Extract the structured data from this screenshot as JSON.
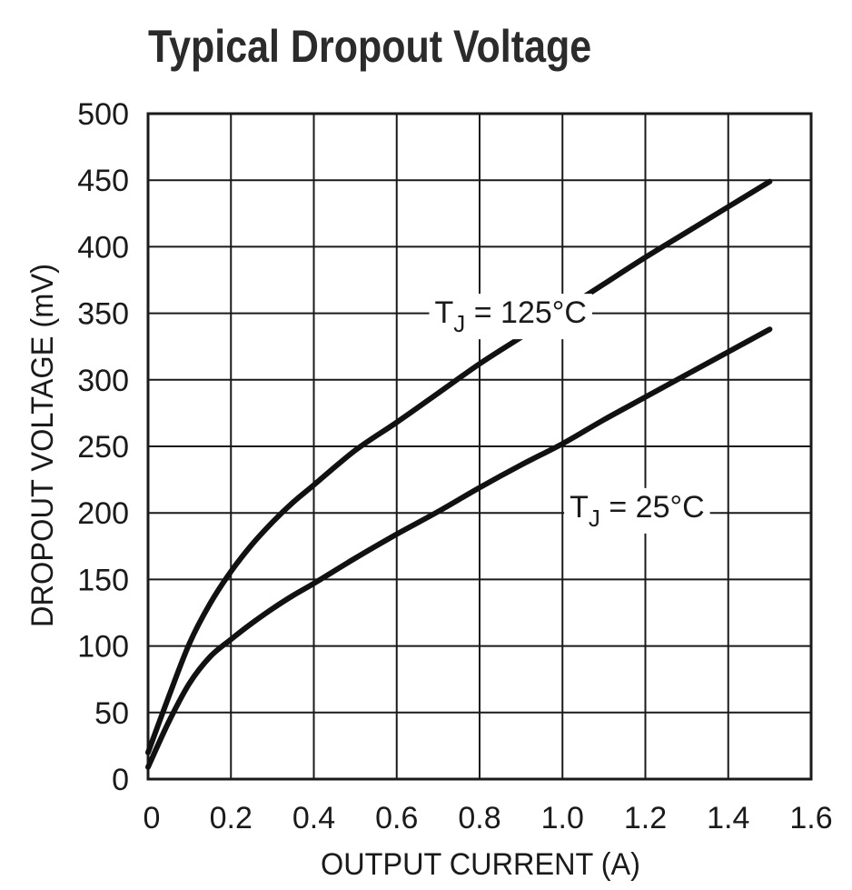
{
  "chart_data": {
    "type": "line",
    "title": "Typical Dropout Voltage",
    "xlabel": "OUTPUT CURRENT (A)",
    "ylabel": "DROPOUT VOLTAGE (mV)",
    "xlim": [
      0,
      1.6
    ],
    "ylim": [
      0,
      500
    ],
    "xticks": [
      0,
      0.2,
      0.4,
      0.6,
      0.8,
      1.0,
      1.2,
      1.4,
      1.6
    ],
    "xtick_labels": [
      "0",
      "0.2",
      "0.4",
      "0.6",
      "0.8",
      "1.0",
      "1.2",
      "1.4",
      "1.6"
    ],
    "yticks": [
      0,
      50,
      100,
      150,
      200,
      250,
      300,
      350,
      400,
      450,
      500
    ],
    "ytick_labels": [
      "0",
      "50",
      "100",
      "150",
      "200",
      "250",
      "300",
      "350",
      "400",
      "450",
      "500"
    ],
    "grid": true,
    "series": [
      {
        "name": "TJ = 125°C",
        "label_main": "T",
        "label_sub": "J",
        "label_rest": " = 125°C",
        "label_at": [
          0.875,
          351
        ],
        "x": [
          0,
          0.05,
          0.1,
          0.15,
          0.2,
          0.25,
          0.3,
          0.35,
          0.4,
          0.5,
          0.6,
          0.7,
          0.8,
          0.9,
          1.0,
          1.1,
          1.2,
          1.3,
          1.4,
          1.5
        ],
        "y": [
          20,
          62,
          102,
          132,
          156,
          176,
          193,
          208,
          221,
          247,
          268,
          290,
          312,
          332,
          352,
          372,
          392,
          411,
          430,
          449
        ]
      },
      {
        "name": "TJ = 25°C",
        "label_main": "T",
        "label_sub": "J",
        "label_rest": " = 25°C",
        "label_at": [
          1.18,
          205
        ],
        "x": [
          0,
          0.05,
          0.1,
          0.15,
          0.2,
          0.25,
          0.3,
          0.35,
          0.4,
          0.5,
          0.6,
          0.7,
          0.8,
          0.9,
          1.0,
          1.1,
          1.2,
          1.3,
          1.4,
          1.5
        ],
        "y": [
          9,
          43,
          72,
          92,
          105,
          117,
          128,
          138,
          147,
          166,
          184,
          201,
          219,
          236,
          252,
          270,
          287,
          304,
          321,
          338
        ]
      }
    ]
  }
}
